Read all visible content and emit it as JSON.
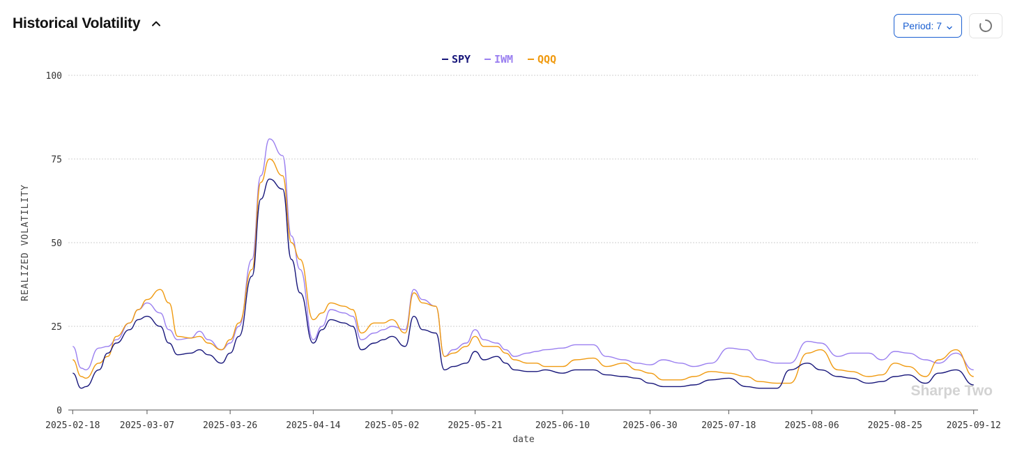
{
  "header": {
    "title": "Historical Volatility",
    "period_label": "Period: 7",
    "refresh_icon": "loading-spinner-icon",
    "collapse_icon": "chevron-up-icon"
  },
  "watermark": "Sharpe Two",
  "colors": {
    "SPY": "#17167a",
    "IWM": "#9a7ff0",
    "QQQ": "#f09a10",
    "grid": "#cfcfcf",
    "axis_text": "#333333",
    "period_button": "#1a5fd1"
  },
  "chart_data": {
    "type": "line",
    "xlabel": "date",
    "ylabel": "REALIZED VOLATILITY",
    "ylim": [
      0,
      100
    ],
    "yticks": [
      0,
      25,
      50,
      75,
      100
    ],
    "xlim": [
      "2025-02-17",
      "2025-09-13"
    ],
    "xticks": [
      "2025-02-18",
      "2025-03-07",
      "2025-03-26",
      "2025-04-14",
      "2025-05-02",
      "2025-05-21",
      "2025-06-10",
      "2025-06-30",
      "2025-07-18",
      "2025-08-06",
      "2025-08-25",
      "2025-09-12"
    ],
    "legend_position": "top-center",
    "grid": "horizontal-dotted",
    "series": [
      {
        "name": "SPY",
        "x": [
          "2025-02-18",
          "2025-02-20",
          "2025-02-21",
          "2025-02-24",
          "2025-02-26",
          "2025-02-28",
          "2025-03-03",
          "2025-03-05",
          "2025-03-07",
          "2025-03-10",
          "2025-03-12",
          "2025-03-14",
          "2025-03-17",
          "2025-03-19",
          "2025-03-21",
          "2025-03-24",
          "2025-03-26",
          "2025-03-28",
          "2025-03-31",
          "2025-04-02",
          "2025-04-04",
          "2025-04-07",
          "2025-04-09",
          "2025-04-11",
          "2025-04-14",
          "2025-04-16",
          "2025-04-18",
          "2025-04-21",
          "2025-04-23",
          "2025-04-25",
          "2025-04-28",
          "2025-04-30",
          "2025-05-02",
          "2025-05-05",
          "2025-05-07",
          "2025-05-09",
          "2025-05-12",
          "2025-05-14",
          "2025-05-16",
          "2025-05-19",
          "2025-05-21",
          "2025-05-23",
          "2025-05-26",
          "2025-05-28",
          "2025-05-30",
          "2025-06-02",
          "2025-06-04",
          "2025-06-06",
          "2025-06-10",
          "2025-06-13",
          "2025-06-17",
          "2025-06-20",
          "2025-06-24",
          "2025-06-27",
          "2025-06-30",
          "2025-07-03",
          "2025-07-07",
          "2025-07-10",
          "2025-07-14",
          "2025-07-18",
          "2025-07-22",
          "2025-07-25",
          "2025-07-29",
          "2025-08-01",
          "2025-08-05",
          "2025-08-08",
          "2025-08-12",
          "2025-08-15",
          "2025-08-19",
          "2025-08-22",
          "2025-08-25",
          "2025-08-28",
          "2025-09-01",
          "2025-09-04",
          "2025-09-08",
          "2025-09-12"
        ],
        "y": [
          11,
          6.5,
          7,
          12,
          17,
          20,
          24,
          27,
          28,
          25,
          20,
          16.5,
          17,
          18,
          16.5,
          14,
          17,
          22,
          40,
          63,
          69,
          66,
          45,
          35,
          20,
          24,
          27,
          26,
          25,
          18,
          20,
          21,
          22,
          19,
          28,
          24,
          23,
          12,
          13,
          14,
          17.5,
          15,
          16,
          14,
          12,
          11.5,
          11.5,
          12,
          11,
          12,
          12,
          10.5,
          10,
          9.5,
          8,
          7,
          7,
          7.5,
          9,
          9.5,
          7,
          6.5,
          6.5,
          12,
          14,
          12,
          10,
          9.5,
          8,
          8.5,
          10,
          10.5,
          8,
          11,
          12,
          7.5
        ]
      },
      {
        "name": "IWM",
        "x": [
          "2025-02-18",
          "2025-02-20",
          "2025-02-21",
          "2025-02-24",
          "2025-02-26",
          "2025-02-28",
          "2025-03-03",
          "2025-03-05",
          "2025-03-07",
          "2025-03-10",
          "2025-03-12",
          "2025-03-14",
          "2025-03-17",
          "2025-03-19",
          "2025-03-21",
          "2025-03-24",
          "2025-03-26",
          "2025-03-28",
          "2025-03-31",
          "2025-04-02",
          "2025-04-04",
          "2025-04-07",
          "2025-04-09",
          "2025-04-11",
          "2025-04-14",
          "2025-04-16",
          "2025-04-18",
          "2025-04-21",
          "2025-04-23",
          "2025-04-25",
          "2025-04-28",
          "2025-04-30",
          "2025-05-02",
          "2025-05-05",
          "2025-05-07",
          "2025-05-09",
          "2025-05-12",
          "2025-05-14",
          "2025-05-16",
          "2025-05-19",
          "2025-05-21",
          "2025-05-23",
          "2025-05-26",
          "2025-05-28",
          "2025-05-30",
          "2025-06-02",
          "2025-06-04",
          "2025-06-06",
          "2025-06-10",
          "2025-06-13",
          "2025-06-17",
          "2025-06-20",
          "2025-06-24",
          "2025-06-27",
          "2025-06-30",
          "2025-07-03",
          "2025-07-07",
          "2025-07-10",
          "2025-07-14",
          "2025-07-18",
          "2025-07-22",
          "2025-07-25",
          "2025-07-29",
          "2025-08-01",
          "2025-08-05",
          "2025-08-08",
          "2025-08-12",
          "2025-08-15",
          "2025-08-19",
          "2025-08-22",
          "2025-08-25",
          "2025-08-28",
          "2025-09-01",
          "2025-09-04",
          "2025-09-08",
          "2025-09-12"
        ],
        "y": [
          19,
          12.5,
          12,
          18.5,
          19,
          21,
          26,
          30,
          32,
          29,
          24,
          21,
          21.5,
          23.5,
          21,
          18,
          20,
          25,
          45,
          70,
          81,
          76,
          52,
          42,
          21,
          25,
          30,
          29,
          28,
          21,
          23,
          24,
          25,
          24,
          36,
          33,
          31,
          16,
          18,
          20,
          24,
          21,
          20,
          18,
          16,
          17,
          17.5,
          18,
          18.5,
          19.5,
          19.5,
          16,
          15,
          14,
          13.5,
          15,
          14,
          13,
          14,
          18.5,
          18,
          15,
          14,
          14,
          20.5,
          20,
          16,
          17,
          17,
          15,
          17.5,
          17,
          15,
          14,
          17,
          12
        ]
      },
      {
        "name": "QQQ",
        "x": [
          "2025-02-18",
          "2025-02-20",
          "2025-02-21",
          "2025-02-24",
          "2025-02-26",
          "2025-02-28",
          "2025-03-03",
          "2025-03-05",
          "2025-03-07",
          "2025-03-10",
          "2025-03-12",
          "2025-03-14",
          "2025-03-17",
          "2025-03-19",
          "2025-03-21",
          "2025-03-24",
          "2025-03-26",
          "2025-03-28",
          "2025-03-31",
          "2025-04-02",
          "2025-04-04",
          "2025-04-07",
          "2025-04-09",
          "2025-04-11",
          "2025-04-14",
          "2025-04-16",
          "2025-04-18",
          "2025-04-21",
          "2025-04-23",
          "2025-04-25",
          "2025-04-28",
          "2025-04-30",
          "2025-05-02",
          "2025-05-05",
          "2025-05-07",
          "2025-05-09",
          "2025-05-12",
          "2025-05-14",
          "2025-05-16",
          "2025-05-19",
          "2025-05-21",
          "2025-05-23",
          "2025-05-26",
          "2025-05-28",
          "2025-05-30",
          "2025-06-02",
          "2025-06-04",
          "2025-06-06",
          "2025-06-10",
          "2025-06-13",
          "2025-06-17",
          "2025-06-20",
          "2025-06-24",
          "2025-06-27",
          "2025-06-30",
          "2025-07-03",
          "2025-07-07",
          "2025-07-10",
          "2025-07-14",
          "2025-07-18",
          "2025-07-22",
          "2025-07-25",
          "2025-07-29",
          "2025-08-01",
          "2025-08-05",
          "2025-08-08",
          "2025-08-12",
          "2025-08-15",
          "2025-08-19",
          "2025-08-22",
          "2025-08-25",
          "2025-08-28",
          "2025-09-01",
          "2025-09-04",
          "2025-09-08",
          "2025-09-12"
        ],
        "y": [
          15,
          10,
          9.5,
          14,
          16,
          22,
          26,
          30,
          33,
          36,
          32,
          22,
          21.5,
          22,
          20,
          18,
          21,
          26,
          42,
          68,
          75,
          70,
          50,
          45,
          27,
          29,
          32,
          31,
          30,
          23,
          26,
          26,
          27,
          23,
          35,
          32,
          31,
          16,
          17,
          19,
          22,
          19,
          19,
          17,
          15,
          14,
          14,
          13,
          13,
          15,
          15.5,
          13,
          14,
          12,
          11,
          9,
          9,
          10,
          11.5,
          11,
          10,
          8.5,
          8,
          8,
          17,
          18,
          12,
          11.5,
          10,
          10.5,
          14,
          13,
          10,
          15,
          18,
          10
        ]
      }
    ]
  }
}
